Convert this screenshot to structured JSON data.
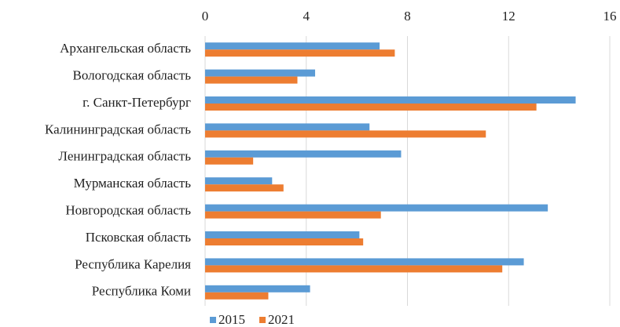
{
  "chart_data": {
    "type": "barh",
    "categories": [
      "Архангельская область",
      "Вологодская область",
      "г. Санкт-Петербург",
      "Калининградская область",
      "Ленинградская область",
      "Мурманская область",
      "Новгородская область",
      "Псковская область",
      "Республика Карелия",
      "Республика Коми"
    ],
    "series": [
      {
        "name": "2015",
        "color": "#5b9bd5",
        "values": [
          6.9,
          4.35,
          14.65,
          6.5,
          7.75,
          2.65,
          13.55,
          6.1,
          12.6,
          4.15
        ]
      },
      {
        "name": "2021",
        "color": "#ed7d31",
        "values": [
          7.5,
          3.65,
          13.1,
          11.1,
          1.9,
          3.1,
          6.95,
          6.25,
          11.75,
          2.5
        ]
      }
    ],
    "xlim": [
      0,
      16
    ],
    "xticks": [
      0,
      4,
      8,
      12,
      16
    ],
    "grid": true,
    "legend": "bottom"
  }
}
